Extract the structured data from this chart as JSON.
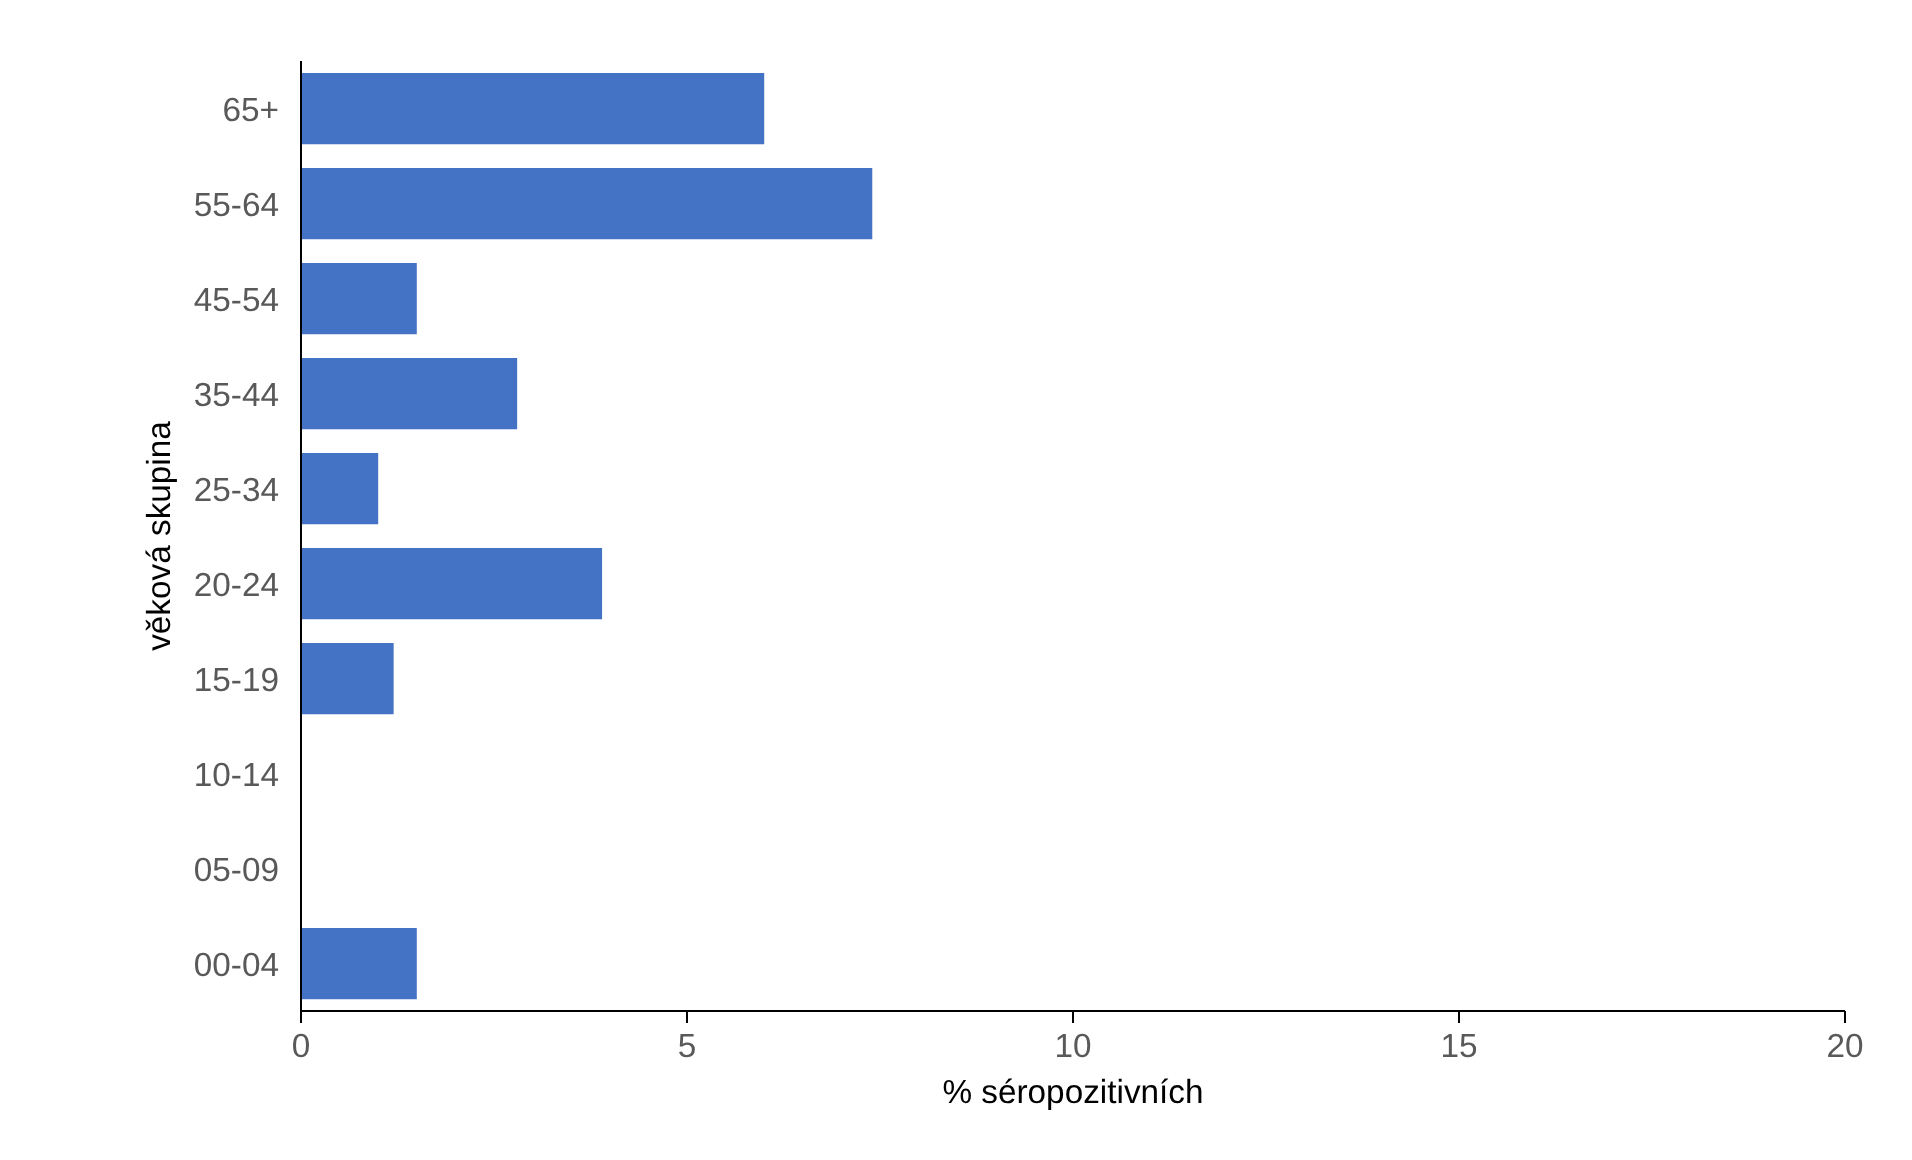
{
  "chart_data": {
    "type": "bar",
    "orientation": "horizontal",
    "xlabel": "% séropozitivních",
    "ylabel": "věková skupina",
    "categories": [
      "65+",
      "55-64",
      "45-54",
      "35-44",
      "25-34",
      "20-24",
      "15-19",
      "10-14",
      "05-09",
      "00-04"
    ],
    "values": [
      6.0,
      7.4,
      1.5,
      2.8,
      1.0,
      3.9,
      1.2,
      0,
      0,
      1.5
    ],
    "color": "#4472c4",
    "xlim": [
      0,
      20
    ],
    "xticks": [
      0,
      5,
      10,
      15,
      20
    ],
    "grid": false
  }
}
